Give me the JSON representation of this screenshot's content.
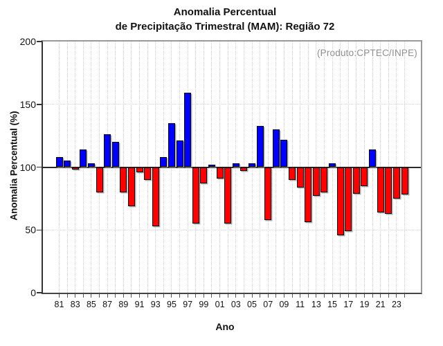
{
  "header": {
    "title_line1": "Anomalia Percentual",
    "title_line2": "de Precipitação Trimestral (MAM): Região 72"
  },
  "annotation": {
    "producer": "(Produto:CPTEC/INPE)"
  },
  "chart_data": {
    "type": "bar",
    "title": "Anomalia Percentual de Precipitação Trimestral (MAM): Região 72",
    "xlabel": "Ano",
    "ylabel": "Anomalia Percentual (%)",
    "ylim": [
      0,
      200
    ],
    "yticks": [
      0,
      50,
      100,
      150,
      200
    ],
    "baseline": 100,
    "grid": true,
    "legend": "none",
    "categories": [
      "81",
      "82",
      "83",
      "84",
      "85",
      "86",
      "87",
      "88",
      "89",
      "90",
      "91",
      "92",
      "93",
      "94",
      "95",
      "96",
      "97",
      "98",
      "99",
      "00",
      "01",
      "02",
      "03",
      "04",
      "05",
      "06",
      "07",
      "08",
      "09",
      "10",
      "11",
      "12",
      "13",
      "14",
      "15",
      "16",
      "17",
      "18",
      "19",
      "20",
      "21",
      "22",
      "23",
      "24"
    ],
    "xtick_labels_shown": [
      "81",
      "83",
      "85",
      "87",
      "89",
      "91",
      "93",
      "95",
      "97",
      "99",
      "01",
      "03",
      "05",
      "07",
      "09",
      "11",
      "13",
      "15",
      "17",
      "19",
      "21",
      "23"
    ],
    "xtick_label_every": 2,
    "values": [
      108,
      105,
      98,
      114,
      103,
      80,
      126,
      120,
      80,
      69,
      96,
      90,
      53,
      108,
      135,
      121,
      159,
      55,
      87,
      102,
      91,
      55,
      103,
      97,
      103,
      133,
      58,
      130,
      122,
      90,
      84,
      56,
      77,
      80,
      103,
      46,
      49,
      79,
      85,
      114,
      64,
      63,
      75,
      78
    ],
    "colors": {
      "above_baseline": "#0000ff",
      "below_baseline": "#ff0000"
    }
  }
}
